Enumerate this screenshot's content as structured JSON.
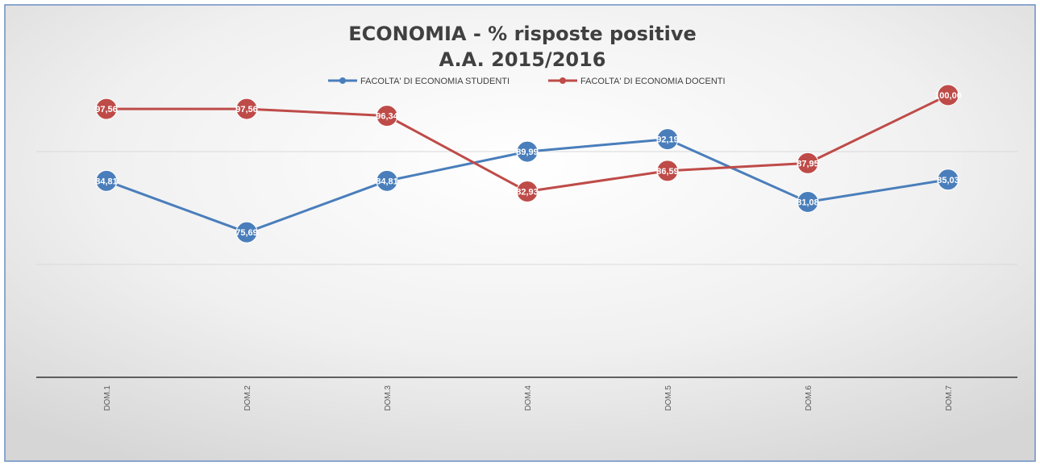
{
  "chart_data": {
    "type": "line",
    "title": "ECONOMIA - % risposte positive",
    "subtitle": "A.A. 2015/2016",
    "categories": [
      "DOM.1",
      "DOM.2",
      "DOM.3",
      "DOM.4",
      "DOM.5",
      "DOM.6",
      "DOM.7"
    ],
    "series": [
      {
        "name": "FACOLTA' DI ECONOMIA STUDENTI",
        "color": "#4a7ebb",
        "values": [
          84.81,
          75.69,
          84.81,
          89.99,
          92.19,
          81.08,
          85.03
        ],
        "labels": [
          "84,81",
          "75,69",
          "84,81",
          "89,99",
          "92,19",
          "81,08",
          "85,03"
        ]
      },
      {
        "name": "FACOLTA' DI ECONOMIA DOCENTI",
        "color": "#be4b48",
        "values": [
          97.56,
          97.56,
          96.34,
          82.93,
          86.59,
          87.95,
          100.0
        ],
        "labels": [
          "97,56",
          "97,56",
          "96,34",
          "82,93",
          "86,59",
          "87,95",
          "100,00"
        ]
      }
    ],
    "ylim": [
      50,
      110
    ],
    "grid": true,
    "legend_position": "top-center",
    "xlabel": "",
    "ylabel": ""
  }
}
